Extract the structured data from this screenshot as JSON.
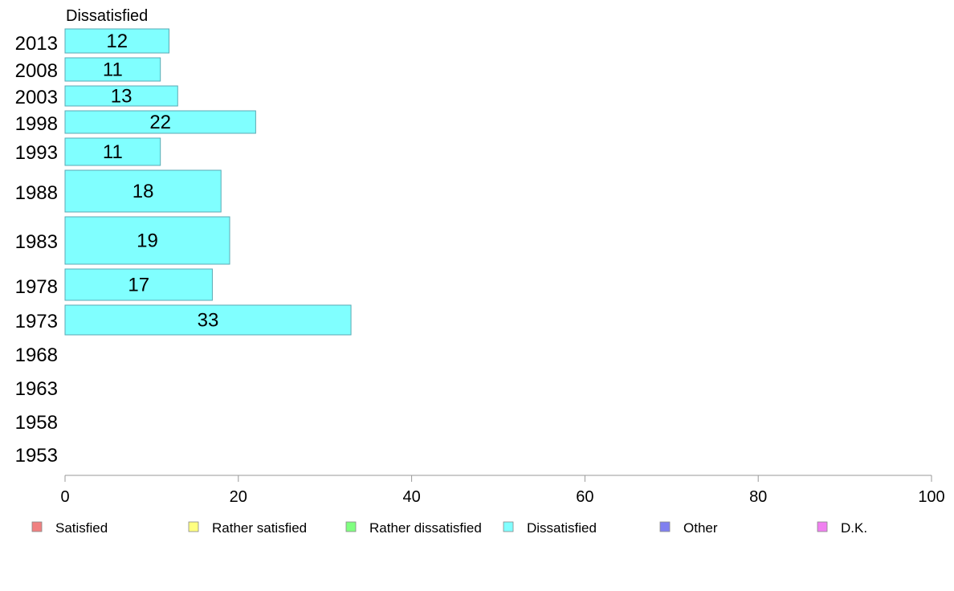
{
  "chart_data": {
    "type": "bar",
    "orientation": "horizontal",
    "title": "Dissatisfied",
    "categories": [
      "2013",
      "2008",
      "2003",
      "1998",
      "1993",
      "1988",
      "1983",
      "1978",
      "1973",
      "1968",
      "1963",
      "1958",
      "1953"
    ],
    "series": [
      {
        "name": "Dissatisfied",
        "color": "#80ffff",
        "values": [
          12,
          11,
          13,
          22,
          11,
          18,
          19,
          17,
          33,
          null,
          null,
          null,
          null
        ]
      }
    ],
    "xlim": [
      0,
      100
    ],
    "xticks": [
      0,
      20,
      40,
      60,
      80,
      100
    ],
    "grid": false,
    "legend": {
      "placement": "bottom",
      "entries": [
        {
          "label": "Satisfied",
          "color": "#f08080"
        },
        {
          "label": "Rather satisfied",
          "color": "#ffff80"
        },
        {
          "label": "Rather dissatisfied",
          "color": "#80ff80"
        },
        {
          "label": "Dissatisfied",
          "color": "#80ffff"
        },
        {
          "label": "Other",
          "color": "#8080f0"
        },
        {
          "label": "D.K.",
          "color": "#f080f0"
        }
      ]
    }
  }
}
